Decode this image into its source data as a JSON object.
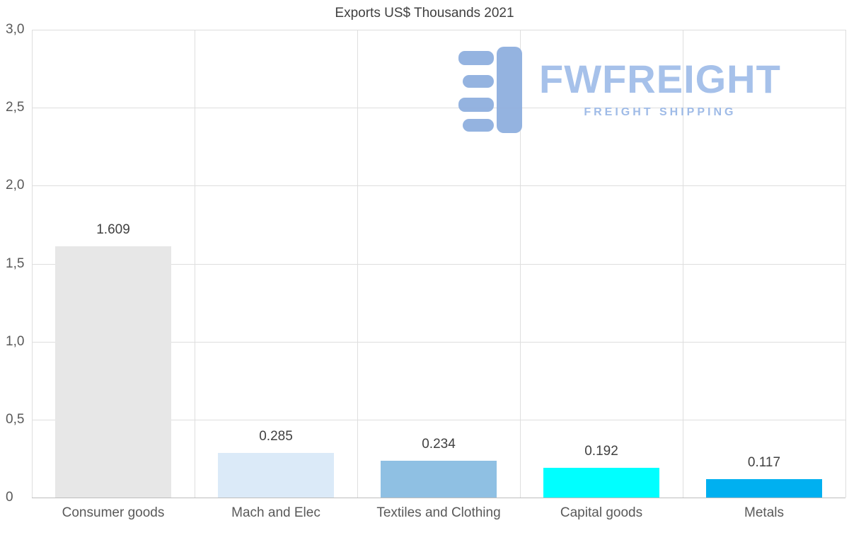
{
  "chart_data": {
    "type": "bar",
    "title": "Exports US$ Thousands 2021",
    "categories": [
      "Consumer goods",
      "Mach and Elec",
      "Textiles and Clothing",
      "Capital goods",
      "Metals"
    ],
    "values": [
      1.609,
      0.285,
      0.234,
      0.192,
      0.117
    ],
    "value_labels": [
      "1.609",
      "0.285",
      "0.234",
      "0.192",
      "0.117"
    ],
    "bar_colors": [
      "#e7e7e7",
      "#dbeaf8",
      "#8fc0e3",
      "#00ffff",
      "#00b0f0"
    ],
    "xlabel": "",
    "ylabel": "",
    "ylim": [
      0,
      3
    ],
    "yticks": [
      {
        "v": 3.0,
        "label": "3,0"
      },
      {
        "v": 2.5,
        "label": "2,5"
      },
      {
        "v": 2.0,
        "label": "2,0"
      },
      {
        "v": 1.5,
        "label": "1,5"
      },
      {
        "v": 1.0,
        "label": "1,0"
      },
      {
        "v": 0.5,
        "label": "0,5"
      },
      {
        "v": 0.0,
        "label": "0"
      }
    ],
    "grid": true,
    "legend": false
  },
  "logo": {
    "name": "FWFREIGHT",
    "tagline": "FREIGHT SHIPPING",
    "color": "#a6c1ea",
    "icon": "fwfreight-mark"
  }
}
